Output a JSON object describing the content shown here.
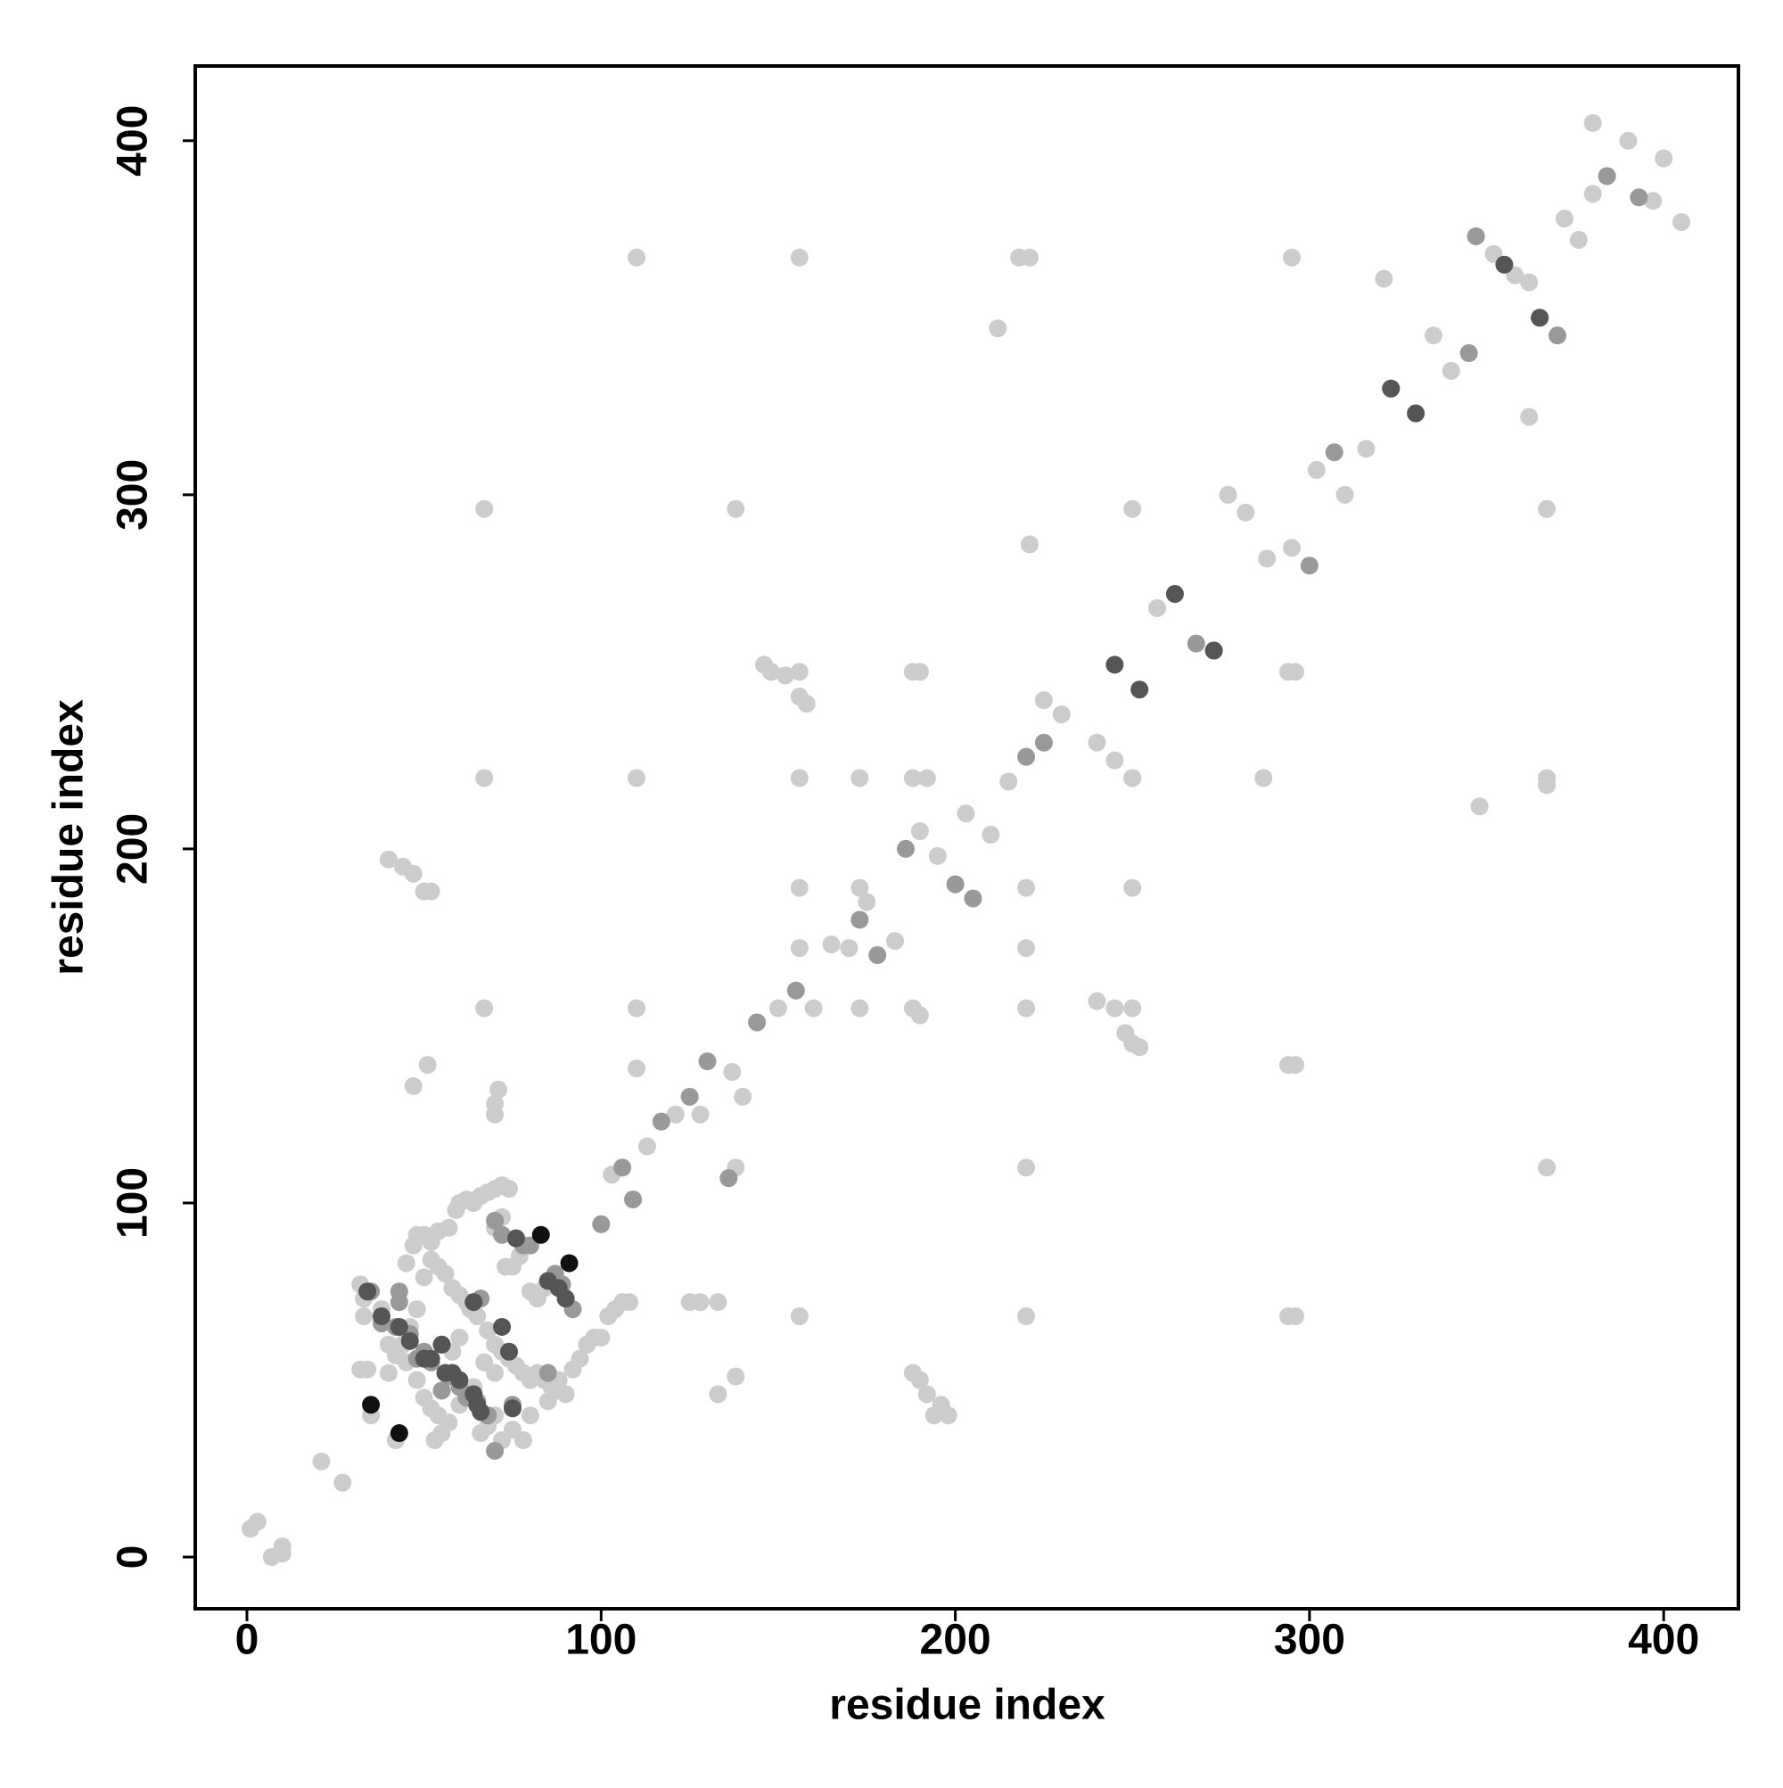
{
  "chart_data": {
    "type": "scatter",
    "x_label": "residue index",
    "y_label": "residue index",
    "xlim": [
      -14.6,
      421.1
    ],
    "ylim": [
      -14.6,
      421.1
    ],
    "xticks": [
      0,
      100,
      200,
      300,
      400
    ],
    "yticks": [
      0,
      100,
      200,
      300,
      400
    ],
    "grid": false,
    "series": [
      {
        "color": "#cccccc",
        "x": [
          1,
          3,
          7,
          10,
          10,
          21,
          27,
          32,
          33,
          33,
          32,
          34,
          35,
          38,
          40,
          42,
          45,
          47,
          48,
          50,
          52,
          54,
          57,
          59,
          60,
          62,
          64,
          66,
          68,
          70,
          72,
          74,
          60,
          62,
          58,
          56,
          54,
          52,
          50,
          48,
          46,
          44,
          42,
          40,
          45,
          48,
          50,
          52,
          54,
          55,
          53,
          57,
          60,
          62,
          64,
          66,
          68,
          70,
          72,
          75,
          78,
          70,
          72,
          74,
          76,
          78,
          80,
          82,
          84,
          86,
          88,
          90,
          92,
          94,
          96,
          98,
          100,
          102,
          104,
          106,
          108,
          73,
          75,
          77,
          80,
          82,
          84,
          72,
          70,
          68,
          65,
          63,
          67,
          70,
          58,
          60,
          80,
          85,
          88,
          103,
          113,
          121,
          128,
          137,
          140,
          150,
          160,
          165,
          170,
          175,
          183,
          190,
          195,
          203,
          210,
          215,
          225,
          230,
          240,
          245,
          250,
          257,
          262,
          277,
          282,
          288,
          295,
          302,
          310,
          316,
          335,
          340,
          352,
          358,
          362,
          372,
          376,
          380,
          384,
          397,
          400,
          405,
          380,
          390,
          110,
          156,
          218,
          221,
          295,
          321,
          212,
          362,
          67,
          138,
          250,
          367,
          221,
          287,
          67,
          110,
          156,
          173,
          188,
          192,
          250,
          367,
          367,
          348,
          40,
          44,
          47,
          50,
          52,
          146,
          148,
          152,
          156,
          156,
          158,
          188,
          190,
          294,
          296,
          156,
          173,
          220,
          250,
          67,
          110,
          156,
          173,
          188,
          190,
          220,
          220,
          240,
          245,
          250,
          248,
          250,
          252,
          51,
          47,
          71,
          70,
          70,
          110,
          294,
          296,
          138,
          220,
          367,
          125,
          128,
          133,
          156,
          220,
          294,
          296,
          138,
          133,
          188,
          190,
          192,
          196,
          194,
          198
        ],
        "y": [
          8,
          10,
          0,
          1,
          3,
          27,
          21,
          77,
          73,
          68,
          53,
          53,
          40,
          70,
          60,
          33,
          83,
          88,
          91,
          91,
          89,
          92,
          93,
          98,
          100,
          101,
          100,
          102,
          103,
          104,
          105,
          104,
          74,
          72,
          76,
          80,
          82,
          84,
          79,
          70,
          65,
          60,
          57,
          52,
          55,
          50,
          45,
          42,
          40,
          35,
          33,
          38,
          43,
          47,
          48,
          35,
          37,
          40,
          33,
          36,
          33,
          60,
          58,
          56,
          54,
          52,
          50,
          52,
          50,
          48,
          50,
          46,
          53,
          56,
          60,
          62,
          62,
          68,
          70,
          72,
          72,
          82,
          82,
          85,
          75,
          73,
          76,
          96,
          93,
          64,
          68,
          70,
          55,
          52,
          58,
          62,
          40,
          44,
          47,
          108,
          116,
          125,
          125,
          137,
          130,
          155,
          155,
          173,
          172,
          185,
          174,
          205,
          198,
          210,
          204,
          219,
          242,
          238,
          230,
          225,
          220,
          268,
          272,
          300,
          295,
          282,
          285,
          307,
          300,
          313,
          345,
          335,
          368,
          362,
          360,
          378,
          372,
          385,
          390,
          383,
          395,
          377,
          405,
          400,
          367,
          367,
          367,
          367,
          367,
          361,
          347,
          322,
          296,
          296,
          296,
          296,
          286,
          220,
          220,
          220,
          220,
          220,
          220,
          220,
          220,
          220,
          218,
          212,
          197,
          195,
          193,
          188,
          188,
          252,
          250,
          249,
          250,
          243,
          241,
          250,
          250,
          250,
          250,
          189,
          189,
          189,
          189,
          155,
          155,
          172,
          155,
          155,
          153,
          172,
          155,
          157,
          155,
          155,
          148,
          145,
          144,
          139,
          133,
          132,
          128,
          125,
          138,
          139,
          139,
          110,
          110,
          110,
          72,
          72,
          72,
          68,
          68,
          68,
          68,
          51,
          46,
          52,
          50,
          46,
          43,
          40,
          40
        ]
      },
      {
        "color": "#999999",
        "x": [
          35,
          43,
          43,
          38,
          42,
          46,
          50,
          55,
          57,
          60,
          62,
          65,
          68,
          75,
          70,
          72,
          76,
          78,
          70,
          85,
          87,
          89,
          90,
          92,
          66,
          52,
          48,
          55,
          58,
          80,
          100,
          106,
          109,
          117,
          125,
          130,
          144,
          155,
          173,
          178,
          186,
          200,
          205,
          220,
          225,
          268,
          273,
          300,
          307,
          323,
          345,
          347,
          365,
          370,
          384,
          393,
          136
        ],
        "y": [
          75,
          75,
          72,
          66,
          65,
          63,
          58,
          60,
          51,
          48,
          45,
          44,
          40,
          43,
          30,
          91,
          90,
          88,
          95,
          52,
          80,
          77,
          73,
          70,
          73,
          55,
          56,
          47,
          52,
          88,
          94,
          110,
          101,
          123,
          130,
          140,
          151,
          160,
          180,
          170,
          200,
          190,
          186,
          226,
          230,
          258,
          256,
          280,
          312,
          330,
          340,
          373,
          350,
          345,
          390,
          384,
          107
        ]
      },
      {
        "color": "#555555",
        "x": [
          34,
          43,
          46,
          50,
          52,
          56,
          58,
          60,
          64,
          65,
          66,
          75,
          72,
          74,
          64,
          85,
          88,
          76,
          90,
          38,
          55,
          245,
          252,
          262,
          273,
          323,
          330,
          355,
          365
        ],
        "y": [
          75,
          65,
          61,
          56,
          56,
          52,
          52,
          50,
          46,
          43,
          41,
          42,
          65,
          58,
          72,
          78,
          76,
          90,
          73,
          68,
          60,
          252,
          245,
          272,
          256,
          330,
          323,
          365,
          350
        ]
      },
      {
        "color": "#111111",
        "x": [
          35,
          43,
          83,
          91
        ],
        "y": [
          43,
          35,
          91,
          83
        ]
      }
    ]
  }
}
